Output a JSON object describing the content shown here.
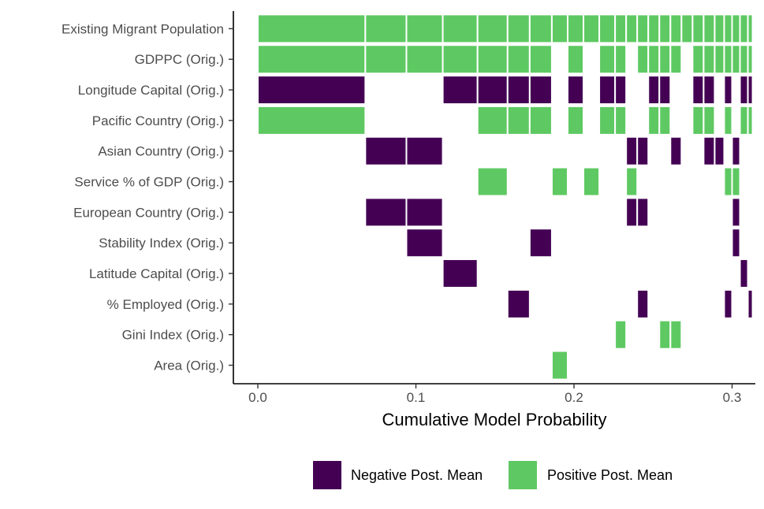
{
  "chart_data": {
    "type": "heatmap",
    "subtype": "bma-model-inclusion",
    "xlabel": "Cumulative Model Probability",
    "ylabel": "",
    "xlim": [
      0,
      0.313
    ],
    "xticks": [
      0.0,
      0.1,
      0.2,
      0.3
    ],
    "xtick_labels": [
      "0.0",
      "0.1",
      "0.2",
      "0.3"
    ],
    "variables": [
      "Existing Migrant Population",
      "GDPPC (Orig.)",
      "Longitude Capital (Orig.)",
      "Pacific Country (Orig.)",
      "Asian Country (Orig.)",
      "Service % of GDP (Orig.)",
      "European Country (Orig.)",
      "Stability Index (Orig.)",
      "Latitude Capital (Orig.)",
      "% Employed (Orig.)",
      "Gini Index (Orig.)",
      "Area (Orig.)"
    ],
    "model_boundaries": [
      0.0,
      0.068,
      0.094,
      0.117,
      0.139,
      0.158,
      0.172,
      0.186,
      0.196,
      0.206,
      0.216,
      0.226,
      0.233,
      0.24,
      0.247,
      0.254,
      0.261,
      0.268,
      0.275,
      0.282,
      0.289,
      0.295,
      0.3,
      0.305,
      0.31,
      0.313
    ],
    "models": [
      {
        "Existing Migrant Population": 1,
        "GDPPC (Orig.)": 1,
        "Longitude Capital (Orig.)": -1,
        "Pacific Country (Orig.)": 1
      },
      {
        "Existing Migrant Population": 1,
        "GDPPC (Orig.)": 1,
        "Asian Country (Orig.)": -1,
        "European Country (Orig.)": -1
      },
      {
        "Existing Migrant Population": 1,
        "GDPPC (Orig.)": 1,
        "Asian Country (Orig.)": -1,
        "European Country (Orig.)": -1,
        "Stability Index (Orig.)": -1
      },
      {
        "Existing Migrant Population": 1,
        "GDPPC (Orig.)": 1,
        "Longitude Capital (Orig.)": -1,
        "Latitude Capital (Orig.)": -1
      },
      {
        "Existing Migrant Population": 1,
        "GDPPC (Orig.)": 1,
        "Longitude Capital (Orig.)": -1,
        "Pacific Country (Orig.)": 1,
        "Service % of GDP (Orig.)": 1
      },
      {
        "Existing Migrant Population": 1,
        "GDPPC (Orig.)": 1,
        "Longitude Capital (Orig.)": -1,
        "Pacific Country (Orig.)": 1,
        "% Employed (Orig.)": -1
      },
      {
        "Existing Migrant Population": 1,
        "GDPPC (Orig.)": 1,
        "Longitude Capital (Orig.)": -1,
        "Pacific Country (Orig.)": 1,
        "Stability Index (Orig.)": -1
      },
      {
        "Existing Migrant Population": 1,
        "Service % of GDP (Orig.)": 1,
        "Area (Orig.)": 1
      },
      {
        "Existing Migrant Population": 1,
        "GDPPC (Orig.)": 1,
        "Longitude Capital (Orig.)": -1,
        "Pacific Country (Orig.)": 1
      },
      {
        "Existing Migrant Population": 1,
        "Service % of GDP (Orig.)": 1
      },
      {
        "Existing Migrant Population": 1,
        "GDPPC (Orig.)": 1,
        "Longitude Capital (Orig.)": -1,
        "Pacific Country (Orig.)": 1
      },
      {
        "Existing Migrant Population": 1,
        "GDPPC (Orig.)": 1,
        "Longitude Capital (Orig.)": -1,
        "Pacific Country (Orig.)": 1,
        "Gini Index (Orig.)": 1
      },
      {
        "Existing Migrant Population": 1,
        "Asian Country (Orig.)": -1,
        "Service % of GDP (Orig.)": 1,
        "European Country (Orig.)": -1
      },
      {
        "Existing Migrant Population": 1,
        "GDPPC (Orig.)": 1,
        "Asian Country (Orig.)": -1,
        "European Country (Orig.)": -1,
        "% Employed (Orig.)": -1
      },
      {
        "Existing Migrant Population": 1,
        "GDPPC (Orig.)": 1,
        "Longitude Capital (Orig.)": -1,
        "Pacific Country (Orig.)": 1
      },
      {
        "Existing Migrant Population": 1,
        "GDPPC (Orig.)": 1,
        "Longitude Capital (Orig.)": -1,
        "Pacific Country (Orig.)": 1,
        "Gini Index (Orig.)": 1
      },
      {
        "Existing Migrant Population": 1,
        "GDPPC (Orig.)": 1,
        "Asian Country (Orig.)": -1,
        "Gini Index (Orig.)": 1
      },
      {
        "Existing Migrant Population": 1
      },
      {
        "Existing Migrant Population": 1,
        "GDPPC (Orig.)": 1,
        "Longitude Capital (Orig.)": -1,
        "Pacific Country (Orig.)": 1
      },
      {
        "Existing Migrant Population": 1,
        "GDPPC (Orig.)": 1,
        "Longitude Capital (Orig.)": -1,
        "Pacific Country (Orig.)": 1,
        "Asian Country (Orig.)": -1
      },
      {
        "Existing Migrant Population": 1,
        "GDPPC (Orig.)": 1,
        "Asian Country (Orig.)": -1
      },
      {
        "Existing Migrant Population": 1,
        "GDPPC (Orig.)": 1,
        "Longitude Capital (Orig.)": -1,
        "Pacific Country (Orig.)": 1,
        "Service % of GDP (Orig.)": 1,
        "% Employed (Orig.)": -1
      },
      {
        "Existing Migrant Population": 1,
        "GDPPC (Orig.)": 1,
        "Asian Country (Orig.)": -1,
        "Service % of GDP (Orig.)": 1,
        "European Country (Orig.)": -1,
        "Stability Index (Orig.)": -1
      },
      {
        "Existing Migrant Population": 1,
        "GDPPC (Orig.)": 1,
        "Longitude Capital (Orig.)": -1,
        "Pacific Country (Orig.)": 1,
        "Latitude Capital (Orig.)": -1
      },
      {
        "Existing Migrant Population": 1,
        "GDPPC (Orig.)": 1,
        "Longitude Capital (Orig.)": -1,
        "Pacific Country (Orig.)": 1,
        "% Employed (Orig.)": -1
      }
    ],
    "legend": [
      {
        "label": "Negative Post. Mean",
        "color": "#440154"
      },
      {
        "label": "Positive Post. Mean",
        "color": "#5ec962"
      }
    ],
    "legend_position": "bottom"
  }
}
